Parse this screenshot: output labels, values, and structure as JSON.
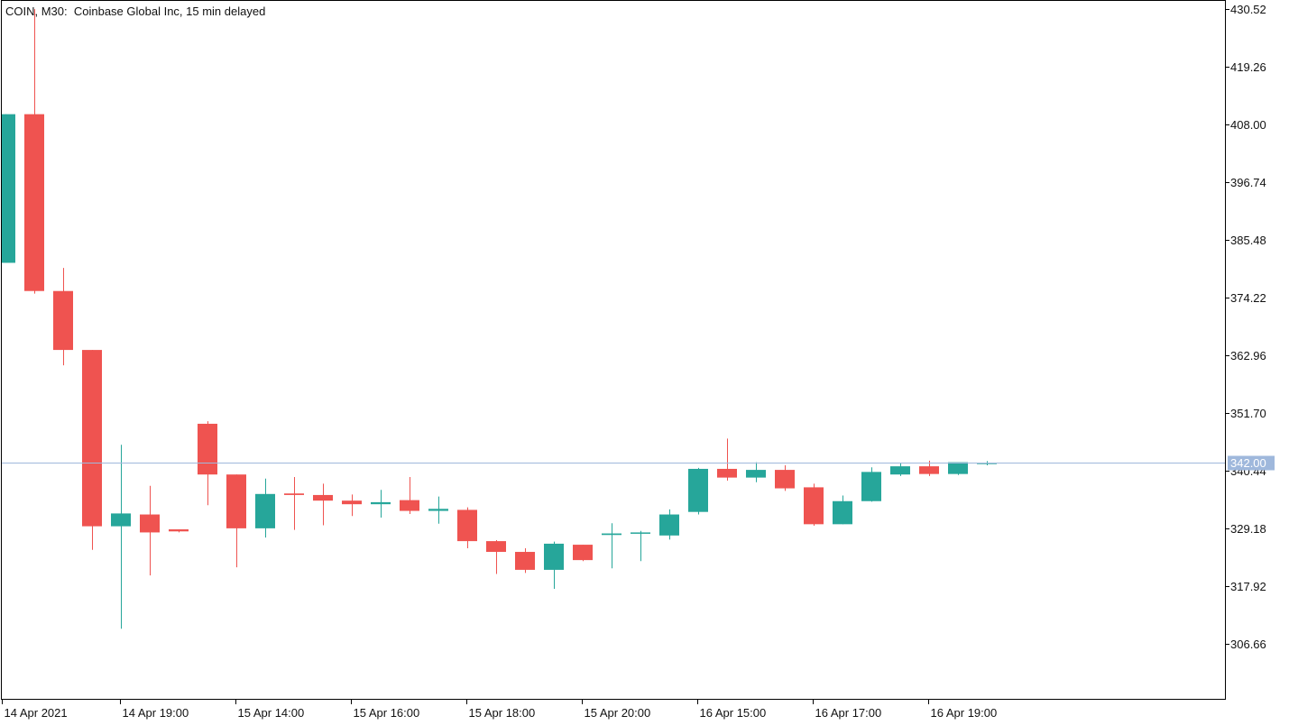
{
  "header": {
    "title": "COIN, M30:  Coinbase Global Inc, 15 min delayed"
  },
  "chart_data": {
    "type": "candlestick",
    "title": "COIN, M30:  Coinbase Global Inc, 15 min delayed",
    "ylim": [
      295.3,
      430.9
    ],
    "y_ticks": [
      "430.52",
      "419.26",
      "408.00",
      "396.74",
      "385.48",
      "374.22",
      "362.96",
      "351.70",
      "340.44",
      "329.18",
      "317.92",
      "306.66"
    ],
    "x_ticks": [
      {
        "label": "14 Apr 2021",
        "index": 0
      },
      {
        "label": "14 Apr 19:00",
        "index": 4
      },
      {
        "label": "15 Apr 14:00",
        "index": 8
      },
      {
        "label": "15 Apr 16:00",
        "index": 12
      },
      {
        "label": "15 Apr 18:00",
        "index": 16
      },
      {
        "label": "15 Apr 20:00",
        "index": 20
      },
      {
        "label": "16 Apr 15:00",
        "index": 24
      },
      {
        "label": "16 Apr 17:00",
        "index": 28
      },
      {
        "label": "16 Apr 19:00",
        "index": 32
      }
    ],
    "current_price": "342.00",
    "current_price_value": 342.0,
    "colors": {
      "up": "#26a69a",
      "down": "#ef5350",
      "price_line": "#9fb8dc",
      "price_label_bg": "#9fb8dc"
    },
    "candles": [
      {
        "o": 381.0,
        "h": 410.0,
        "l": 381.0,
        "c": 410.0
      },
      {
        "o": 410.0,
        "h": 430.5,
        "l": 375.0,
        "c": 375.5
      },
      {
        "o": 375.5,
        "h": 380.0,
        "l": 361.0,
        "c": 364.0
      },
      {
        "o": 364.0,
        "h": 364.0,
        "l": 325.0,
        "c": 329.6
      },
      {
        "o": 329.6,
        "h": 345.5,
        "l": 309.6,
        "c": 332.1
      },
      {
        "o": 331.9,
        "h": 337.5,
        "l": 320.0,
        "c": 328.4
      },
      {
        "o": 329.0,
        "h": 329.0,
        "l": 328.4,
        "c": 328.6
      },
      {
        "o": 349.6,
        "h": 350.1,
        "l": 333.7,
        "c": 339.7
      },
      {
        "o": 339.7,
        "h": 339.7,
        "l": 321.6,
        "c": 329.2
      },
      {
        "o": 329.2,
        "h": 338.9,
        "l": 327.4,
        "c": 335.9
      },
      {
        "o": 336.0,
        "h": 339.2,
        "l": 328.9,
        "c": 335.7
      },
      {
        "o": 335.7,
        "h": 337.9,
        "l": 329.8,
        "c": 334.6
      },
      {
        "o": 334.6,
        "h": 335.8,
        "l": 331.6,
        "c": 333.9
      },
      {
        "o": 333.9,
        "h": 336.7,
        "l": 331.3,
        "c": 334.3
      },
      {
        "o": 334.7,
        "h": 339.2,
        "l": 332.0,
        "c": 332.6
      },
      {
        "o": 332.6,
        "h": 335.4,
        "l": 330.1,
        "c": 333.0
      },
      {
        "o": 332.8,
        "h": 333.3,
        "l": 325.3,
        "c": 326.7
      },
      {
        "o": 326.7,
        "h": 326.9,
        "l": 320.3,
        "c": 324.6
      },
      {
        "o": 324.6,
        "h": 325.3,
        "l": 320.5,
        "c": 321.1
      },
      {
        "o": 321.1,
        "h": 326.6,
        "l": 317.4,
        "c": 326.2
      },
      {
        "o": 326.0,
        "h": 326.0,
        "l": 322.8,
        "c": 323.0
      },
      {
        "o": 327.9,
        "h": 330.2,
        "l": 321.4,
        "c": 328.2
      },
      {
        "o": 328.2,
        "h": 328.7,
        "l": 322.8,
        "c": 328.4
      },
      {
        "o": 327.8,
        "h": 332.9,
        "l": 327.0,
        "c": 331.9
      },
      {
        "o": 332.4,
        "h": 341.0,
        "l": 331.9,
        "c": 340.8
      },
      {
        "o": 340.8,
        "h": 346.7,
        "l": 338.5,
        "c": 339.1
      },
      {
        "o": 339.1,
        "h": 342.1,
        "l": 338.2,
        "c": 340.6
      },
      {
        "o": 340.6,
        "h": 341.5,
        "l": 336.5,
        "c": 337.0
      },
      {
        "o": 337.2,
        "h": 337.9,
        "l": 329.7,
        "c": 330.0
      },
      {
        "o": 330.0,
        "h": 335.6,
        "l": 330.0,
        "c": 334.5
      },
      {
        "o": 334.5,
        "h": 341.1,
        "l": 334.4,
        "c": 340.2
      },
      {
        "o": 339.7,
        "h": 341.9,
        "l": 339.4,
        "c": 341.3
      },
      {
        "o": 341.3,
        "h": 342.4,
        "l": 339.4,
        "c": 339.8
      },
      {
        "o": 339.8,
        "h": 342.0,
        "l": 339.6,
        "c": 342.1
      },
      {
        "o": 342.0,
        "h": 342.3,
        "l": 341.5,
        "c": 342.0
      }
    ]
  }
}
